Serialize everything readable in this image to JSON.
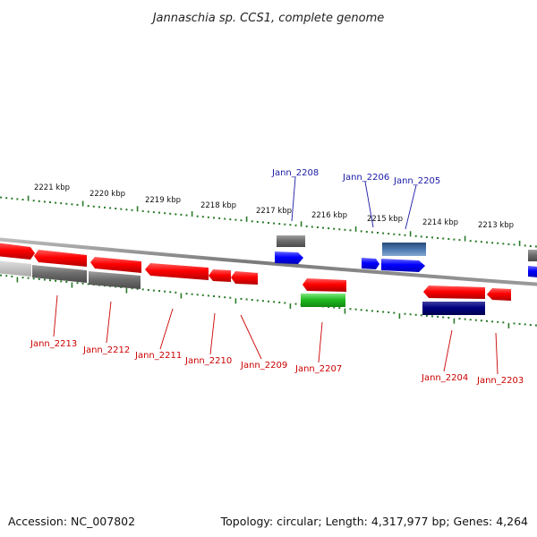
{
  "title": "Jannaschia sp. CCS1, complete genome",
  "footer": {
    "accession": "Accession: NC_007802",
    "summary": "Topology: circular; Length: 4,317,977 bp; Genes: 4,264"
  },
  "colors": {
    "label_top": "#1a1aa6",
    "label_bottom": "#cc0000",
    "tick": "#2a7a2a",
    "backbone": "#8a8a8a"
  },
  "kbp_ticks": [
    {
      "label": "2221 kbp"
    },
    {
      "label": "2220 kbp"
    },
    {
      "label": "2219 kbp"
    },
    {
      "label": "2218 kbp"
    },
    {
      "label": "2217 kbp"
    },
    {
      "label": "2216 kbp"
    },
    {
      "label": "2215 kbp"
    },
    {
      "label": "2214 kbp"
    },
    {
      "label": "2213 kbp"
    }
  ],
  "genes": [
    {
      "name": "Jann_2208",
      "strand": "top",
      "color": "blue"
    },
    {
      "name": "Jann_2206",
      "strand": "top",
      "color": "blue"
    },
    {
      "name": "Jann_2205",
      "strand": "top",
      "color": "blue"
    },
    {
      "name": "Jann_2213",
      "strand": "bottom",
      "color": "red"
    },
    {
      "name": "Jann_2212",
      "strand": "bottom",
      "color": "red"
    },
    {
      "name": "Jann_2211",
      "strand": "bottom",
      "color": "red"
    },
    {
      "name": "Jann_2210",
      "strand": "bottom",
      "color": "red"
    },
    {
      "name": "Jann_2209",
      "strand": "bottom",
      "color": "red"
    },
    {
      "name": "Jann_2207",
      "strand": "bottom",
      "color": "red"
    },
    {
      "name": "Jann_2204",
      "strand": "bottom",
      "color": "red"
    },
    {
      "name": "Jann_2203",
      "strand": "bottom",
      "color": "red"
    }
  ]
}
